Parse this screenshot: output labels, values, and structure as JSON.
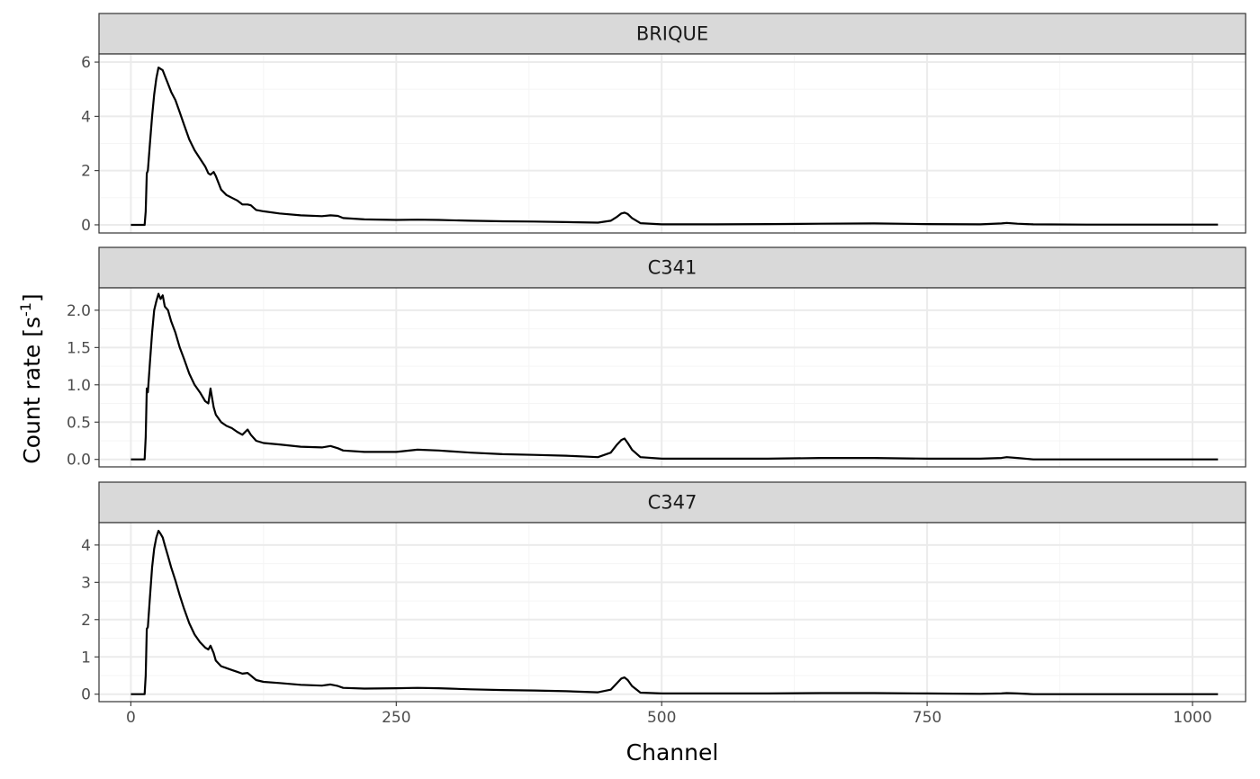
{
  "chart_data": {
    "type": "line",
    "layout": "facet",
    "xlabel": "Channel",
    "ylabel": {
      "text": "Count rate [s",
      "sup": "-1",
      "close": "]"
    },
    "xlim": [
      -30,
      1050
    ],
    "x_ticks": [
      0,
      250,
      500,
      750,
      1000
    ],
    "x_minor_ticks": [
      125,
      375,
      625,
      875
    ],
    "grid": true,
    "colors": {
      "line": "#000000",
      "strip_fill": "#d9d9d9",
      "strip_border": "#333333",
      "grid_major": "#ebebeb",
      "grid_minor": "#f5f5f5",
      "panel_border": "#333333",
      "tick_label": "#4d4d4d"
    },
    "facets": [
      {
        "name": "BRIQUE",
        "ylim": [
          -0.3,
          6.3
        ],
        "y_ticks": [
          0,
          2,
          4,
          6
        ],
        "y_tick_labels": [
          "0",
          "2",
          "4",
          "6"
        ],
        "y_minor_ticks": [
          1,
          3,
          5
        ],
        "x": [
          0,
          13,
          14,
          15,
          16,
          18,
          20,
          22,
          24,
          26,
          28,
          30,
          32,
          35,
          38,
          42,
          46,
          50,
          55,
          60,
          65,
          70,
          73,
          75,
          78,
          80,
          85,
          90,
          95,
          100,
          105,
          110,
          113,
          118,
          125,
          140,
          160,
          180,
          188,
          195,
          200,
          220,
          250,
          270,
          290,
          300,
          320,
          350,
          380,
          410,
          440,
          452,
          458,
          462,
          465,
          468,
          472,
          480,
          500,
          550,
          600,
          650,
          700,
          750,
          800,
          820,
          825,
          835,
          850,
          900,
          1000,
          1024
        ],
        "y": [
          0,
          0,
          0.5,
          1.9,
          2.0,
          3.0,
          4.0,
          4.8,
          5.4,
          5.8,
          5.75,
          5.7,
          5.5,
          5.2,
          4.9,
          4.6,
          4.15,
          3.7,
          3.15,
          2.75,
          2.45,
          2.15,
          1.9,
          1.85,
          1.95,
          1.8,
          1.3,
          1.1,
          1.0,
          0.9,
          0.75,
          0.75,
          0.72,
          0.55,
          0.5,
          0.42,
          0.35,
          0.32,
          0.35,
          0.33,
          0.25,
          0.2,
          0.18,
          0.19,
          0.18,
          0.17,
          0.15,
          0.13,
          0.12,
          0.1,
          0.08,
          0.15,
          0.3,
          0.42,
          0.45,
          0.4,
          0.25,
          0.06,
          0.02,
          0.02,
          0.03,
          0.04,
          0.05,
          0.03,
          0.02,
          0.05,
          0.07,
          0.04,
          0.02,
          0.01,
          0.01,
          0.01
        ]
      },
      {
        "name": "C341",
        "ylim": [
          -0.1,
          2.3
        ],
        "y_ticks": [
          0,
          0.5,
          1.0,
          1.5,
          2.0
        ],
        "y_tick_labels": [
          "0.0",
          "0.5",
          "1.0",
          "1.5",
          "2.0"
        ],
        "y_minor_ticks": [
          0.25,
          0.75,
          1.25,
          1.75
        ],
        "x": [
          0,
          13,
          14,
          15,
          16,
          18,
          20,
          22,
          24,
          26,
          28,
          30,
          32,
          35,
          38,
          42,
          46,
          50,
          55,
          60,
          65,
          70,
          73,
          75,
          78,
          80,
          85,
          90,
          95,
          100,
          105,
          110,
          113,
          118,
          125,
          140,
          160,
          180,
          188,
          195,
          200,
          220,
          250,
          270,
          290,
          300,
          320,
          350,
          380,
          410,
          440,
          452,
          458,
          462,
          465,
          468,
          472,
          480,
          500,
          550,
          600,
          650,
          700,
          750,
          800,
          820,
          825,
          835,
          850,
          900,
          1000,
          1024
        ],
        "y": [
          0,
          0,
          0.3,
          0.95,
          0.9,
          1.3,
          1.7,
          2.0,
          2.12,
          2.22,
          2.15,
          2.2,
          2.05,
          2.0,
          1.85,
          1.7,
          1.5,
          1.35,
          1.15,
          1.0,
          0.9,
          0.78,
          0.75,
          0.95,
          0.7,
          0.6,
          0.5,
          0.45,
          0.42,
          0.37,
          0.33,
          0.4,
          0.33,
          0.25,
          0.22,
          0.2,
          0.17,
          0.16,
          0.18,
          0.15,
          0.12,
          0.1,
          0.1,
          0.13,
          0.12,
          0.11,
          0.09,
          0.07,
          0.06,
          0.05,
          0.03,
          0.09,
          0.2,
          0.26,
          0.28,
          0.22,
          0.13,
          0.03,
          0.01,
          0.01,
          0.01,
          0.02,
          0.02,
          0.01,
          0.01,
          0.02,
          0.03,
          0.02,
          0.0,
          0.0,
          0.0,
          0.0
        ]
      },
      {
        "name": "C347",
        "ylim": [
          -0.2,
          4.6
        ],
        "y_ticks": [
          0,
          1,
          2,
          3,
          4
        ],
        "y_tick_labels": [
          "0",
          "1",
          "2",
          "3",
          "4"
        ],
        "y_minor_ticks": [
          0.5,
          1.5,
          2.5,
          3.5
        ],
        "x": [
          0,
          13,
          14,
          15,
          16,
          18,
          20,
          22,
          24,
          26,
          28,
          30,
          32,
          35,
          38,
          42,
          46,
          50,
          55,
          60,
          65,
          70,
          73,
          75,
          78,
          80,
          85,
          90,
          95,
          100,
          105,
          110,
          113,
          118,
          125,
          140,
          160,
          180,
          188,
          195,
          200,
          220,
          250,
          270,
          290,
          300,
          320,
          350,
          380,
          410,
          440,
          452,
          458,
          462,
          465,
          468,
          472,
          480,
          500,
          550,
          600,
          650,
          700,
          750,
          800,
          820,
          825,
          835,
          850,
          900,
          1000,
          1024
        ],
        "y": [
          0,
          0,
          0.5,
          1.75,
          1.8,
          2.6,
          3.4,
          3.9,
          4.2,
          4.38,
          4.3,
          4.2,
          4.0,
          3.7,
          3.4,
          3.05,
          2.65,
          2.3,
          1.9,
          1.6,
          1.4,
          1.25,
          1.2,
          1.3,
          1.1,
          0.9,
          0.75,
          0.7,
          0.65,
          0.6,
          0.55,
          0.57,
          0.5,
          0.38,
          0.33,
          0.3,
          0.25,
          0.23,
          0.26,
          0.22,
          0.17,
          0.15,
          0.16,
          0.17,
          0.16,
          0.15,
          0.13,
          0.11,
          0.1,
          0.08,
          0.05,
          0.12,
          0.3,
          0.42,
          0.45,
          0.38,
          0.22,
          0.04,
          0.02,
          0.02,
          0.02,
          0.03,
          0.03,
          0.02,
          0.01,
          0.02,
          0.03,
          0.02,
          0.0,
          0.0,
          0.0,
          0.0
        ]
      }
    ]
  }
}
